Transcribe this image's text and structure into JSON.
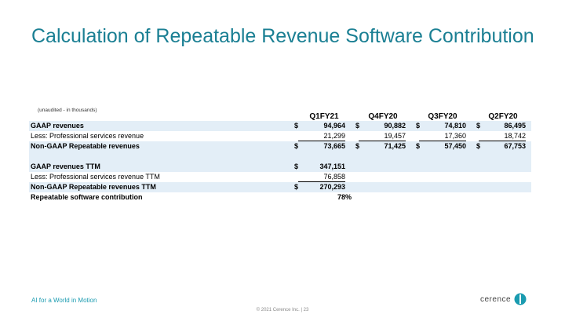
{
  "title": "Calculation of Repeatable Revenue Software Contribution",
  "note": "(unaudited - in thousands)",
  "columns": [
    "Q1FY21",
    "Q4FY20",
    "Q3FY20",
    "Q2FY20"
  ],
  "currency_symbol": "$",
  "rows": [
    {
      "label": "GAAP revenues",
      "values": [
        "94,964",
        "90,882",
        "74,810",
        "86,495"
      ]
    },
    {
      "label": "Less: Professional services revenue",
      "values": [
        "21,299",
        "19,457",
        "17,360",
        "18,742"
      ]
    },
    {
      "label": "Non-GAAP Repeatable revenues",
      "values": [
        "73,665",
        "71,425",
        "57,450",
        "67,753"
      ]
    },
    {
      "label": "GAAP revenues TTM",
      "values": [
        "347,151"
      ]
    },
    {
      "label": "Less: Professional services revenue TTM",
      "values": [
        "76,858"
      ]
    },
    {
      "label": "Non-GAAP Repeatable revenues TTM",
      "values": [
        "270,293"
      ]
    },
    {
      "label": "Repeatable software contribution",
      "values": [
        "78%"
      ]
    }
  ],
  "footer": {
    "tagline": "AI for a World in Motion",
    "copyright": "© 2021 Cerence Inc.  |  23",
    "logo_text": "cerence",
    "brand_color": "#1a9bb0"
  }
}
